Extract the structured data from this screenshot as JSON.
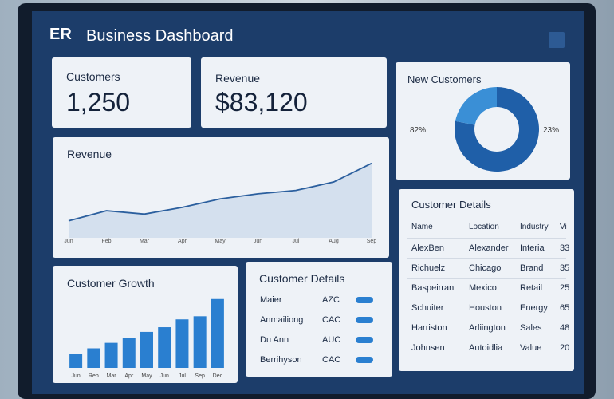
{
  "header": {
    "logo": "ER",
    "title": "Business Dashboard"
  },
  "kpis": [
    {
      "label": "Customers",
      "value": "1,250"
    },
    {
      "label": "Revenue",
      "value": "$83,120"
    }
  ],
  "revenue_chart": {
    "chart_data": {
      "type": "line",
      "title": "Revenue",
      "categories": [
        "Jun",
        "Feb",
        "Mar",
        "Apr",
        "May",
        "Jun",
        "Jul",
        "Aug",
        "Sep"
      ],
      "values": [
        20,
        32,
        28,
        36,
        46,
        52,
        56,
        66,
        88
      ],
      "ylim": [
        0,
        100
      ],
      "color": "#2b5f9e"
    }
  },
  "new_customers": {
    "chart_data": {
      "type": "pie",
      "title": "New Customers",
      "values": [
        82,
        23
      ],
      "value_labels": [
        "82%",
        "23%"
      ],
      "colors": [
        "#1f5fa8",
        "#3a8fd6"
      ]
    }
  },
  "growth_chart": {
    "chart_data": {
      "type": "bar",
      "title": "Customer Growth",
      "categories": [
        "Jun",
        "Reb",
        "Mar",
        "Apr",
        "May",
        "Jun",
        "Jul",
        "Sep",
        "Dec"
      ],
      "values": [
        18,
        25,
        32,
        38,
        46,
        52,
        62,
        66,
        88
      ],
      "ylim": [
        0,
        100
      ],
      "color": "#2a7fd0"
    }
  },
  "details_small": {
    "title": "Customer Details",
    "rows": [
      [
        "Maier",
        "AZC"
      ],
      [
        "Anmailiong",
        "CAC"
      ],
      [
        "Du Ann",
        "AUC"
      ],
      [
        "Berrihyson",
        "CAC"
      ]
    ]
  },
  "table": {
    "title": "Customer Details",
    "columns": [
      "Name",
      "Location",
      "Industry",
      "Vi"
    ],
    "rows": [
      [
        "AlexBen",
        "Alexander",
        "Interia",
        "33"
      ],
      [
        "Richuelz",
        "Chicago",
        "Brand",
        "35"
      ],
      [
        "Baspeirran",
        "Mexico",
        "Retail",
        "25"
      ],
      [
        "Schuiter",
        "Houston",
        "Energy",
        "65"
      ],
      [
        "Harriston",
        "Arliington",
        "Sales",
        "48"
      ],
      [
        "Johnsen",
        "Autoidlia",
        "Value",
        "20"
      ]
    ]
  }
}
